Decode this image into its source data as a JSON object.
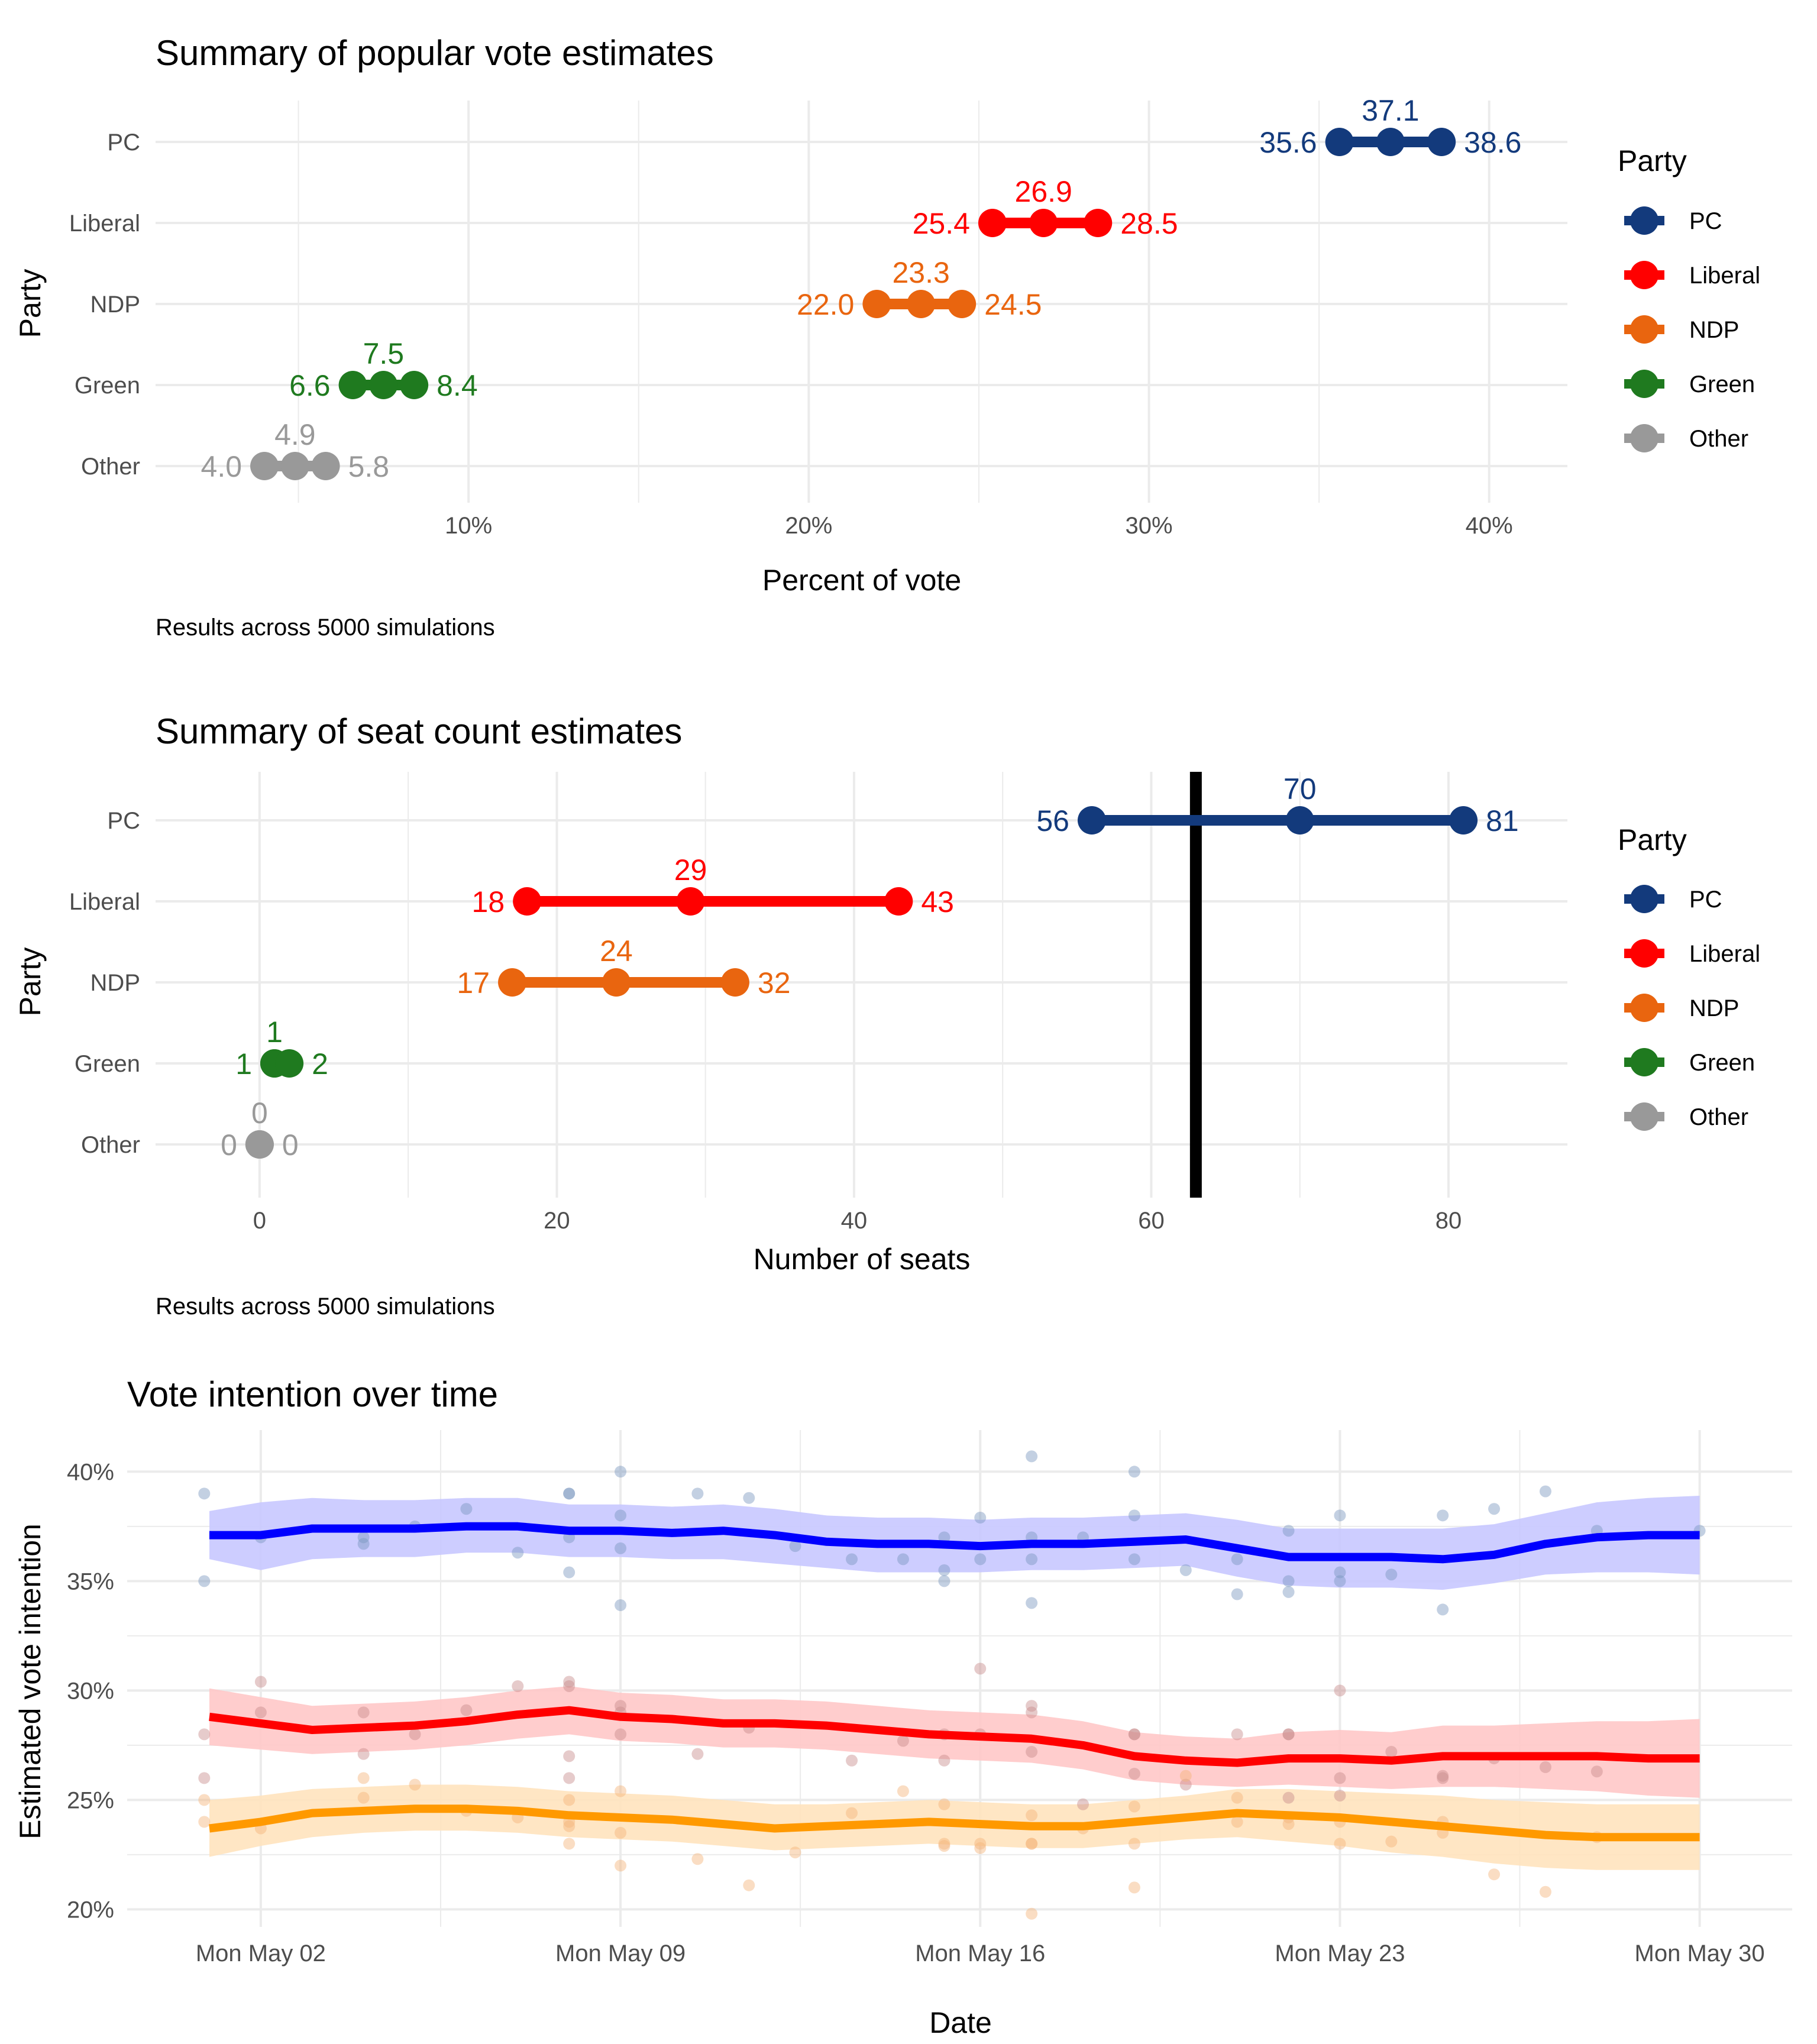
{
  "chart_data": [
    {
      "type": "dot-range",
      "title": "Summary of popular vote estimates",
      "xlabel": "Percent of vote",
      "ylabel": "Party",
      "caption": "Results across 5000 simulations",
      "x_ticks": [
        "10%",
        "20%",
        "30%",
        "40%"
      ],
      "x_tick_values": [
        10,
        20,
        30,
        40
      ],
      "xlim": [
        0.8,
        42.3
      ],
      "legend_title": "Party",
      "legend_position": "right",
      "grid": true,
      "series": [
        {
          "name": "PC",
          "color": "#133A7C",
          "low": 35.6,
          "mid": 37.1,
          "high": 38.6,
          "low_label": "35.6",
          "mid_label": "37.1",
          "high_label": "38.6"
        },
        {
          "name": "Liberal",
          "color": "#FF0000",
          "low": 25.4,
          "mid": 26.9,
          "high": 28.5,
          "low_label": "25.4",
          "mid_label": "26.9",
          "high_label": "28.5"
        },
        {
          "name": "NDP",
          "color": "#E9650F",
          "low": 22.0,
          "mid": 23.3,
          "high": 24.5,
          "low_label": "22.0",
          "mid_label": "23.3",
          "high_label": "24.5"
        },
        {
          "name": "Green",
          "color": "#1F7A1F",
          "low": 6.6,
          "mid": 7.5,
          "high": 8.4,
          "low_label": "6.6",
          "mid_label": "7.5",
          "high_label": "8.4"
        },
        {
          "name": "Other",
          "color": "#999999",
          "low": 4.0,
          "mid": 4.9,
          "high": 5.8,
          "low_label": "4.0",
          "mid_label": "4.9",
          "high_label": "5.8"
        }
      ]
    },
    {
      "type": "dot-range",
      "title": "Summary of seat count estimates",
      "xlabel": "Number of seats",
      "ylabel": "Party",
      "caption": "Results across 5000 simulations",
      "x_ticks": [
        "0",
        "20",
        "40",
        "60",
        "80"
      ],
      "x_tick_values": [
        0,
        20,
        40,
        60,
        80
      ],
      "xlim": [
        -7,
        88
      ],
      "majority_line": 63,
      "legend_title": "Party",
      "legend_position": "right",
      "grid": true,
      "series": [
        {
          "name": "PC",
          "color": "#133A7C",
          "low": 56,
          "mid": 70,
          "high": 81,
          "low_label": "56",
          "mid_label": "70",
          "high_label": "81"
        },
        {
          "name": "Liberal",
          "color": "#FF0000",
          "low": 18,
          "mid": 29,
          "high": 43,
          "low_label": "18",
          "mid_label": "29",
          "high_label": "43"
        },
        {
          "name": "NDP",
          "color": "#E9650F",
          "low": 17,
          "mid": 24,
          "high": 32,
          "low_label": "17",
          "mid_label": "24",
          "high_label": "32"
        },
        {
          "name": "Green",
          "color": "#1F7A1F",
          "low": 1,
          "mid": 1,
          "high": 2,
          "low_label": "1",
          "mid_label": "1",
          "high_label": "2"
        },
        {
          "name": "Other",
          "color": "#999999",
          "low": 0,
          "mid": 0,
          "high": 0,
          "low_label": "0",
          "mid_label": "0",
          "high_label": "0"
        }
      ]
    },
    {
      "type": "line",
      "title": "Vote intention over time",
      "xlabel": "Date",
      "ylabel": "Estimated vote intention",
      "x_ticks": [
        "Mon May 02",
        "Mon May 09",
        "Mon May 16",
        "Mon May 23",
        "Mon May 30"
      ],
      "x_tick_values": [
        2,
        9,
        16,
        23,
        30
      ],
      "y_ticks": [
        "20%",
        "25%",
        "30%",
        "35%",
        "40%"
      ],
      "y_tick_values": [
        20,
        25,
        30,
        35,
        40
      ],
      "xlim": [
        -0.6,
        31.8
      ],
      "ylim": [
        19.2,
        41.9
      ],
      "grid": true,
      "x": [
        1,
        2,
        3,
        4,
        5,
        6,
        7,
        8,
        9,
        10,
        11,
        12,
        13,
        14,
        15,
        16,
        17,
        18,
        19,
        20,
        21,
        22,
        23,
        24,
        25,
        26,
        27,
        28,
        29,
        30
      ],
      "series": [
        {
          "name": "PC",
          "color": "#0000FF",
          "band_color": "#C8C8FF",
          "point_color": "#7A96BE",
          "values": [
            37.1,
            37.1,
            37.4,
            37.4,
            37.4,
            37.5,
            37.5,
            37.3,
            37.3,
            37.2,
            37.3,
            37.1,
            36.8,
            36.7,
            36.7,
            36.6,
            36.7,
            36.7,
            36.8,
            36.9,
            36.5,
            36.1,
            36.1,
            36.1,
            36.0,
            36.2,
            36.7,
            37.0,
            37.1,
            37.1
          ],
          "lower": [
            36.0,
            35.5,
            36.0,
            36.1,
            36.1,
            36.3,
            36.3,
            36.1,
            36.1,
            36.0,
            36.0,
            35.8,
            35.6,
            35.4,
            35.4,
            35.4,
            35.5,
            35.5,
            35.6,
            35.7,
            35.2,
            34.8,
            34.7,
            34.7,
            34.6,
            34.9,
            35.3,
            35.4,
            35.4,
            35.3
          ],
          "upper": [
            38.2,
            38.6,
            38.8,
            38.7,
            38.7,
            38.8,
            38.8,
            38.5,
            38.5,
            38.4,
            38.5,
            38.3,
            38.0,
            37.9,
            37.9,
            37.8,
            37.9,
            37.9,
            38.0,
            38.1,
            37.8,
            37.4,
            37.4,
            37.4,
            37.4,
            37.6,
            38.1,
            38.6,
            38.8,
            38.9
          ],
          "points": [
            [
              0.9,
              39.0
            ],
            [
              0.9,
              35.0
            ],
            [
              2.0,
              37.0
            ],
            [
              4.0,
              37.0
            ],
            [
              4.0,
              36.7
            ],
            [
              5.0,
              37.5
            ],
            [
              6.0,
              38.3
            ],
            [
              7.0,
              36.3
            ],
            [
              8.0,
              39.0
            ],
            [
              8.0,
              39.0
            ],
            [
              8.0,
              37.0
            ],
            [
              8.0,
              35.4
            ],
            [
              9.0,
              40.0
            ],
            [
              9.0,
              38.0
            ],
            [
              9.0,
              36.5
            ],
            [
              9.0,
              33.9
            ],
            [
              10.5,
              39.0
            ],
            [
              11.5,
              38.8
            ],
            [
              12.4,
              36.6
            ],
            [
              13.5,
              36.0
            ],
            [
              14.5,
              36.0
            ],
            [
              15.3,
              37.0
            ],
            [
              15.3,
              35.5
            ],
            [
              15.3,
              35.0
            ],
            [
              16.0,
              37.9
            ],
            [
              16.0,
              36.0
            ],
            [
              17.0,
              40.7
            ],
            [
              17.0,
              37.0
            ],
            [
              17.0,
              36.0
            ],
            [
              17.0,
              34.0
            ],
            [
              18.0,
              37.0
            ],
            [
              19.0,
              40.0
            ],
            [
              19.0,
              38.0
            ],
            [
              19.0,
              36.0
            ],
            [
              20.0,
              35.5
            ],
            [
              21.0,
              36.0
            ],
            [
              21.0,
              34.4
            ],
            [
              22.0,
              37.3
            ],
            [
              22.0,
              35.0
            ],
            [
              22.0,
              34.5
            ],
            [
              23.0,
              38.0
            ],
            [
              23.0,
              35.4
            ],
            [
              23.0,
              35.0
            ],
            [
              24.0,
              35.3
            ],
            [
              25.0,
              38.0
            ],
            [
              25.0,
              33.7
            ],
            [
              26.0,
              38.3
            ],
            [
              27.0,
              39.1
            ],
            [
              28.0,
              37.3
            ],
            [
              30.0,
              37.3
            ]
          ]
        },
        {
          "name": "Liberal",
          "color": "#FF0000",
          "band_color": "#FFC8C8",
          "point_color": "#C88C8C",
          "values": [
            28.8,
            28.5,
            28.2,
            28.3,
            28.4,
            28.6,
            28.9,
            29.1,
            28.8,
            28.7,
            28.5,
            28.5,
            28.4,
            28.2,
            28.0,
            27.9,
            27.8,
            27.5,
            27.0,
            26.8,
            26.7,
            26.9,
            26.9,
            26.8,
            27.0,
            27.0,
            27.0,
            27.0,
            26.9,
            26.9
          ],
          "lower": [
            27.5,
            27.3,
            27.1,
            27.2,
            27.3,
            27.5,
            27.8,
            28.0,
            27.7,
            27.6,
            27.4,
            27.4,
            27.3,
            27.1,
            26.9,
            26.8,
            26.7,
            26.4,
            25.9,
            25.7,
            25.6,
            25.7,
            25.6,
            25.5,
            25.6,
            25.6,
            25.5,
            25.4,
            25.2,
            25.1
          ],
          "upper": [
            30.1,
            29.7,
            29.3,
            29.4,
            29.5,
            29.7,
            30.0,
            30.2,
            29.9,
            29.8,
            29.6,
            29.6,
            29.5,
            29.3,
            29.1,
            29.0,
            28.9,
            28.6,
            28.1,
            27.9,
            27.8,
            28.1,
            28.2,
            28.1,
            28.4,
            28.4,
            28.5,
            28.6,
            28.6,
            28.7
          ],
          "points": [
            [
              0.9,
              28.0
            ],
            [
              0.9,
              26.0
            ],
            [
              2.0,
              30.4
            ],
            [
              2.0,
              29.0
            ],
            [
              4.0,
              29.0
            ],
            [
              4.0,
              27.1
            ],
            [
              5.0,
              28.0
            ],
            [
              6.0,
              29.1
            ],
            [
              7.0,
              30.2
            ],
            [
              8.0,
              30.4
            ],
            [
              8.0,
              30.2
            ],
            [
              8.0,
              27.0
            ],
            [
              8.0,
              26.0
            ],
            [
              9.0,
              29.3
            ],
            [
              9.0,
              29.0
            ],
            [
              9.0,
              28.0
            ],
            [
              10.5,
              27.1
            ],
            [
              11.5,
              28.3
            ],
            [
              13.5,
              26.8
            ],
            [
              14.5,
              27.7
            ],
            [
              15.3,
              28.0
            ],
            [
              15.3,
              26.8
            ],
            [
              16.0,
              31.0
            ],
            [
              16.0,
              28.0
            ],
            [
              17.0,
              29.3
            ],
            [
              17.0,
              29.0
            ],
            [
              17.0,
              27.2
            ],
            [
              18.0,
              24.8
            ],
            [
              19.0,
              28.0
            ],
            [
              19.0,
              28.0
            ],
            [
              19.0,
              26.2
            ],
            [
              20.0,
              25.7
            ],
            [
              21.0,
              28.0
            ],
            [
              22.0,
              28.0
            ],
            [
              22.0,
              28.0
            ],
            [
              22.0,
              25.1
            ],
            [
              23.0,
              30.0
            ],
            [
              23.0,
              26.0
            ],
            [
              23.0,
              25.2
            ],
            [
              24.0,
              27.2
            ],
            [
              25.0,
              26.1
            ],
            [
              25.0,
              26.0
            ],
            [
              26.0,
              26.9
            ],
            [
              27.0,
              26.5
            ],
            [
              28.0,
              26.3
            ]
          ]
        },
        {
          "name": "NDP",
          "color": "#FF9900",
          "band_color": "#FFE3BE",
          "point_color": "#F5B47A",
          "values": [
            23.7,
            24.0,
            24.4,
            24.5,
            24.6,
            24.6,
            24.5,
            24.3,
            24.2,
            24.1,
            23.9,
            23.7,
            23.8,
            23.9,
            24.0,
            23.9,
            23.8,
            23.8,
            24.0,
            24.2,
            24.4,
            24.3,
            24.2,
            24.0,
            23.8,
            23.6,
            23.4,
            23.3,
            23.3,
            23.3
          ],
          "lower": [
            22.4,
            22.9,
            23.3,
            23.5,
            23.6,
            23.6,
            23.5,
            23.3,
            23.2,
            23.1,
            22.9,
            22.7,
            22.8,
            22.9,
            23.0,
            22.9,
            22.8,
            22.8,
            23.0,
            23.2,
            23.3,
            23.1,
            22.9,
            22.6,
            22.4,
            22.1,
            21.9,
            21.8,
            21.8,
            21.8
          ],
          "upper": [
            25.0,
            25.2,
            25.5,
            25.6,
            25.7,
            25.7,
            25.6,
            25.4,
            25.3,
            25.2,
            25.0,
            24.8,
            24.8,
            24.9,
            25.0,
            24.9,
            24.8,
            24.8,
            25.0,
            25.2,
            25.5,
            25.5,
            25.4,
            25.3,
            25.2,
            25.0,
            24.9,
            24.8,
            24.8,
            24.8
          ],
          "points": [
            [
              0.9,
              25.0
            ],
            [
              0.9,
              24.0
            ],
            [
              2.0,
              23.7
            ],
            [
              4.0,
              26.0
            ],
            [
              4.0,
              25.1
            ],
            [
              5.0,
              25.7
            ],
            [
              6.0,
              24.5
            ],
            [
              7.0,
              24.2
            ],
            [
              8.0,
              25.0
            ],
            [
              8.0,
              24.0
            ],
            [
              8.0,
              23.8
            ],
            [
              8.0,
              23.0
            ],
            [
              9.0,
              25.4
            ],
            [
              9.0,
              23.5
            ],
            [
              9.0,
              22.0
            ],
            [
              10.5,
              22.3
            ],
            [
              11.5,
              21.1
            ],
            [
              12.4,
              22.6
            ],
            [
              13.5,
              24.4
            ],
            [
              14.5,
              25.4
            ],
            [
              15.3,
              24.8
            ],
            [
              15.3,
              23.0
            ],
            [
              15.3,
              22.9
            ],
            [
              16.0,
              23.0
            ],
            [
              16.0,
              22.8
            ],
            [
              17.0,
              24.3
            ],
            [
              17.0,
              23.0
            ],
            [
              17.0,
              23.0
            ],
            [
              17.0,
              19.8
            ],
            [
              18.0,
              23.7
            ],
            [
              19.0,
              24.7
            ],
            [
              19.0,
              23.0
            ],
            [
              19.0,
              21.0
            ],
            [
              20.0,
              26.1
            ],
            [
              21.0,
              25.1
            ],
            [
              21.0,
              24.0
            ],
            [
              22.0,
              24.2
            ],
            [
              22.0,
              23.9
            ],
            [
              23.0,
              24.0
            ],
            [
              23.0,
              23.0
            ],
            [
              24.0,
              23.1
            ],
            [
              25.0,
              24.0
            ],
            [
              25.0,
              23.5
            ],
            [
              26.0,
              21.6
            ],
            [
              27.0,
              20.8
            ],
            [
              28.0,
              23.3
            ]
          ]
        }
      ]
    }
  ]
}
